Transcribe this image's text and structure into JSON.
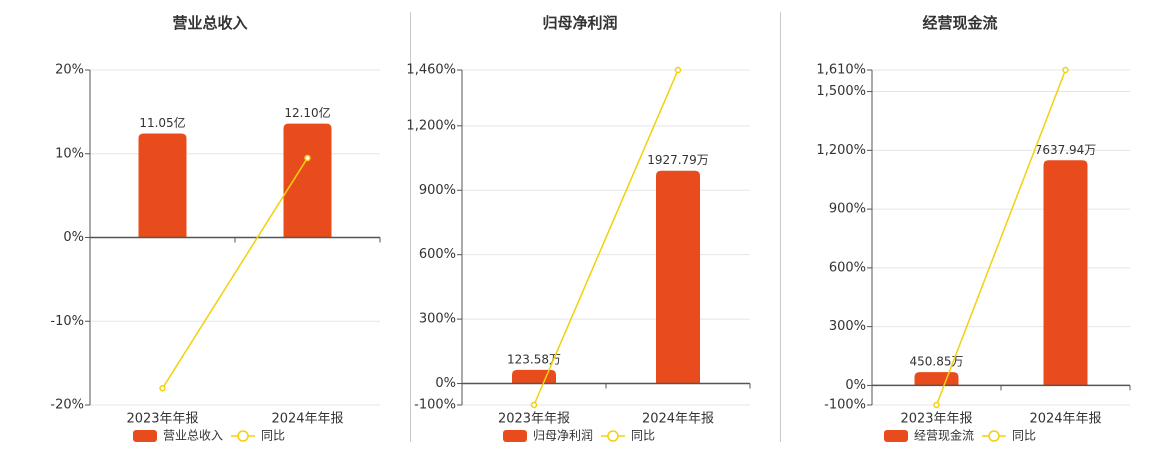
{
  "colors": {
    "bar": "#e84c1c",
    "line": "#f2d10c",
    "axis": "#555555",
    "grid": "#e5e5e5",
    "text": "#333333",
    "divider": "#c8c8c8"
  },
  "chart_data": [
    {
      "type": "bar",
      "title": "营业总收入",
      "categories": [
        "2023年年报",
        "2024年年报"
      ],
      "bar_values": [
        11.05,
        12.1
      ],
      "bar_labels": [
        "11.05亿",
        "12.10亿"
      ],
      "yoy": [
        -18.0,
        9.5
      ],
      "ylim": [
        -20,
        20
      ],
      "yticks": [
        20,
        10,
        0,
        -10,
        -20
      ],
      "ytick_labels": [
        "20%",
        "10%",
        "0%",
        "-10%",
        "-20%"
      ],
      "legend": {
        "bar": "营业总收入",
        "line": "同比"
      }
    },
    {
      "type": "bar",
      "title": "归母净利润",
      "categories": [
        "2023年年报",
        "2024年年报"
      ],
      "bar_values": [
        123.58,
        1927.79
      ],
      "bar_labels": [
        "123.58万",
        "1927.79万"
      ],
      "yoy": [
        -100,
        1460
      ],
      "ylim": [
        -100,
        1460
      ],
      "yticks": [
        1460,
        1200,
        900,
        600,
        300,
        0,
        -100
      ],
      "ytick_labels": [
        "1,460%",
        "1,200%",
        "900%",
        "600%",
        "300%",
        "0%",
        "-100%"
      ],
      "legend": {
        "bar": "归母净利润",
        "line": "同比"
      }
    },
    {
      "type": "bar",
      "title": "经营现金流",
      "categories": [
        "2023年年报",
        "2024年年报"
      ],
      "bar_values": [
        450.85,
        7637.94
      ],
      "bar_labels": [
        "450.85万",
        "7637.94万"
      ],
      "yoy": [
        -100,
        1610
      ],
      "ylim": [
        -100,
        1610
      ],
      "yticks": [
        1610,
        1500,
        1200,
        900,
        600,
        300,
        0,
        -100
      ],
      "ytick_labels": [
        "1,610%",
        "1,500%",
        "1,200%",
        "900%",
        "600%",
        "300%",
        "0%",
        "-100%"
      ],
      "legend": {
        "bar": "经营现金流",
        "line": "同比"
      }
    }
  ]
}
